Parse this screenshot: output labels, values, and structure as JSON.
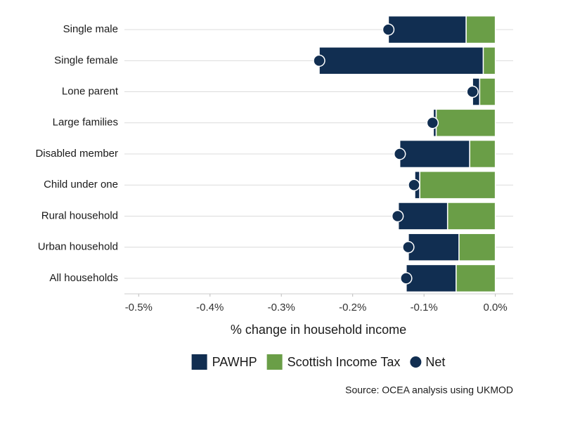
{
  "chart_data": {
    "type": "stacked-bar-h",
    "categories": [
      "Single male",
      "Single female",
      "Lone parent",
      "Large families",
      "Disabled member",
      "Child under one",
      "Rural household",
      "Urban household",
      "All households"
    ],
    "series": [
      {
        "name": "PAWHP",
        "color": "#112e51",
        "style": "bar",
        "values": [
          -0.109,
          -0.23,
          -0.01,
          -0.004,
          -0.098,
          -0.007,
          -0.069,
          -0.071,
          -0.07
        ]
      },
      {
        "name": "Scottish Income Tax",
        "color": "#6a9e47",
        "style": "bar",
        "values": [
          -0.041,
          -0.017,
          -0.022,
          -0.083,
          -0.036,
          -0.106,
          -0.067,
          -0.051,
          -0.055
        ]
      },
      {
        "name": "Net",
        "color": "#112e51",
        "style": "point",
        "values": [
          -0.15,
          -0.247,
          -0.032,
          -0.088,
          -0.134,
          -0.114,
          -0.137,
          -0.122,
          -0.125
        ]
      }
    ],
    "xlim": [
      -0.52,
      0.025
    ],
    "xticks": [
      {
        "value": -0.5,
        "label": "-0.5%"
      },
      {
        "value": -0.4,
        "label": "-0.4%"
      },
      {
        "value": -0.3,
        "label": "-0.3%"
      },
      {
        "value": -0.2,
        "label": "-0.2%"
      },
      {
        "value": -0.1,
        "label": "-0.1%"
      },
      {
        "value": 0,
        "label": "0.0%"
      }
    ],
    "xlabel": "% change in household income",
    "source": "Source: OCEA analysis using UKMOD",
    "grid": true,
    "legend": "bottom"
  }
}
